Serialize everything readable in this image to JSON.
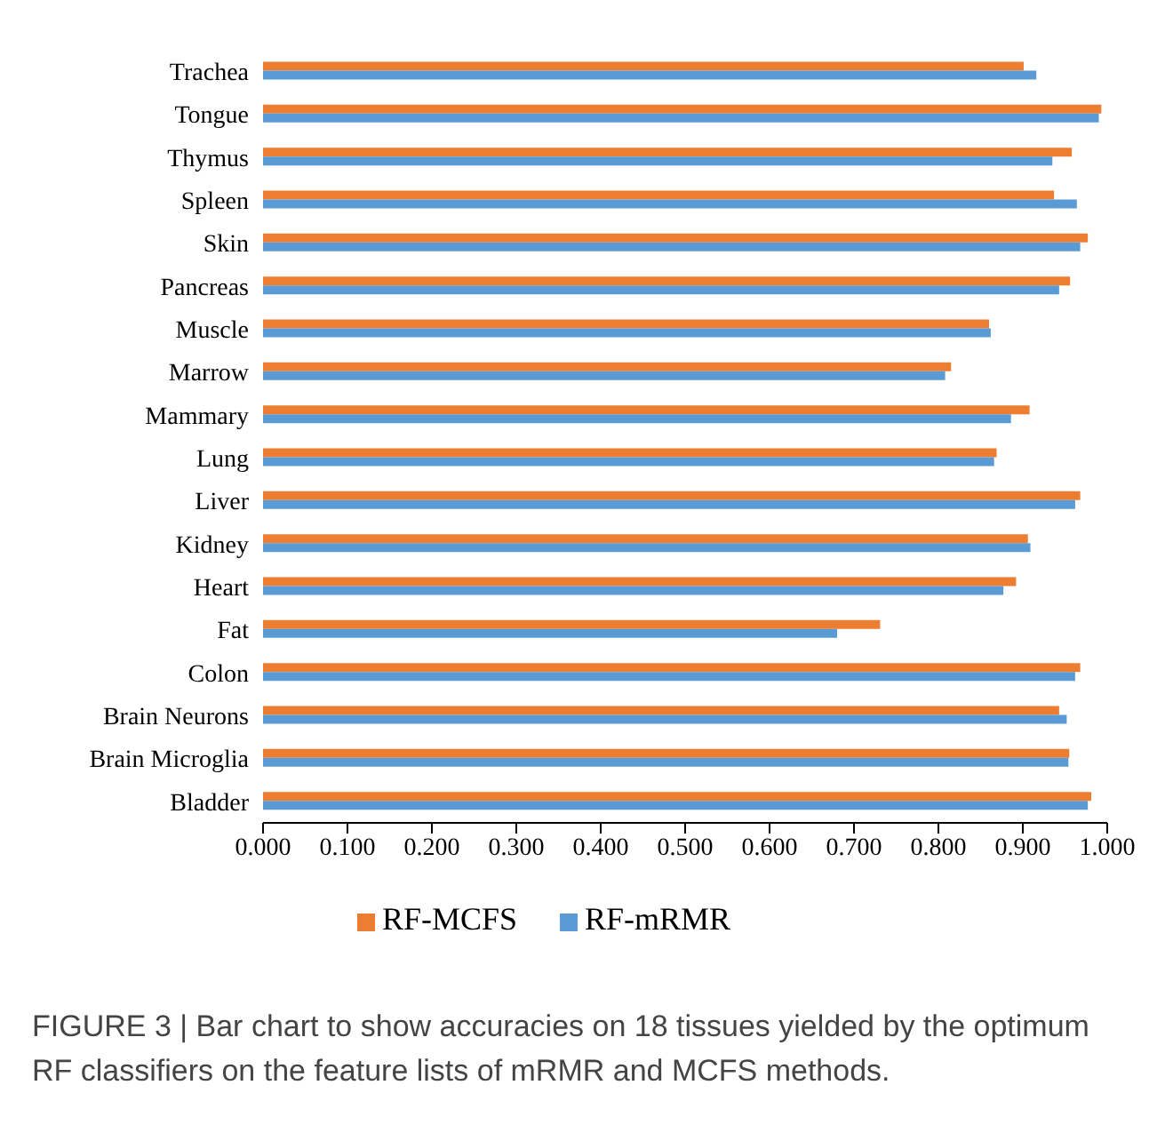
{
  "chart_data": {
    "type": "bar",
    "orientation": "horizontal",
    "categories": [
      "Trachea",
      "Tongue",
      "Thymus",
      "Spleen",
      "Skin",
      "Pancreas",
      "Muscle",
      "Marrow",
      "Mammary",
      "Lung",
      "Liver",
      "Kidney",
      "Heart",
      "Fat",
      "Colon",
      "Brain Neurons",
      "Brain Microglia",
      "Bladder"
    ],
    "series": [
      {
        "name": "RF-MCFS",
        "color": "#ed7d31",
        "values": [
          0.901,
          0.993,
          0.958,
          0.937,
          0.977,
          0.956,
          0.86,
          0.815,
          0.908,
          0.869,
          0.968,
          0.906,
          0.892,
          0.731,
          0.968,
          0.943,
          0.955,
          0.981
        ]
      },
      {
        "name": "RF-mRMR",
        "color": "#5b9bd5",
        "values": [
          0.916,
          0.99,
          0.935,
          0.964,
          0.968,
          0.943,
          0.862,
          0.808,
          0.886,
          0.866,
          0.962,
          0.909,
          0.877,
          0.68,
          0.962,
          0.952,
          0.954,
          0.977
        ]
      }
    ],
    "xlim": [
      0,
      1
    ],
    "xticks": [
      {
        "value": 0,
        "label": "0.000"
      },
      {
        "value": 0.1,
        "label": "0.100"
      },
      {
        "value": 0.2,
        "label": "0.200"
      },
      {
        "value": 0.3,
        "label": "0.300"
      },
      {
        "value": 0.4,
        "label": "0.400"
      },
      {
        "value": 0.5,
        "label": "0.500"
      },
      {
        "value": 0.6,
        "label": "0.600"
      },
      {
        "value": 0.7,
        "label": "0.700"
      },
      {
        "value": 0.8,
        "label": "0.800"
      },
      {
        "value": 0.9,
        "label": "0.900"
      },
      {
        "value": 1,
        "label": "1.000"
      }
    ],
    "legend": "bottom",
    "annotations": [
      "FIGURE 3 | Bar chart to show accuracies on 18 tissues yielded by the optimum RF classifiers on the feature lists of mRMR and MCFS methods."
    ]
  }
}
